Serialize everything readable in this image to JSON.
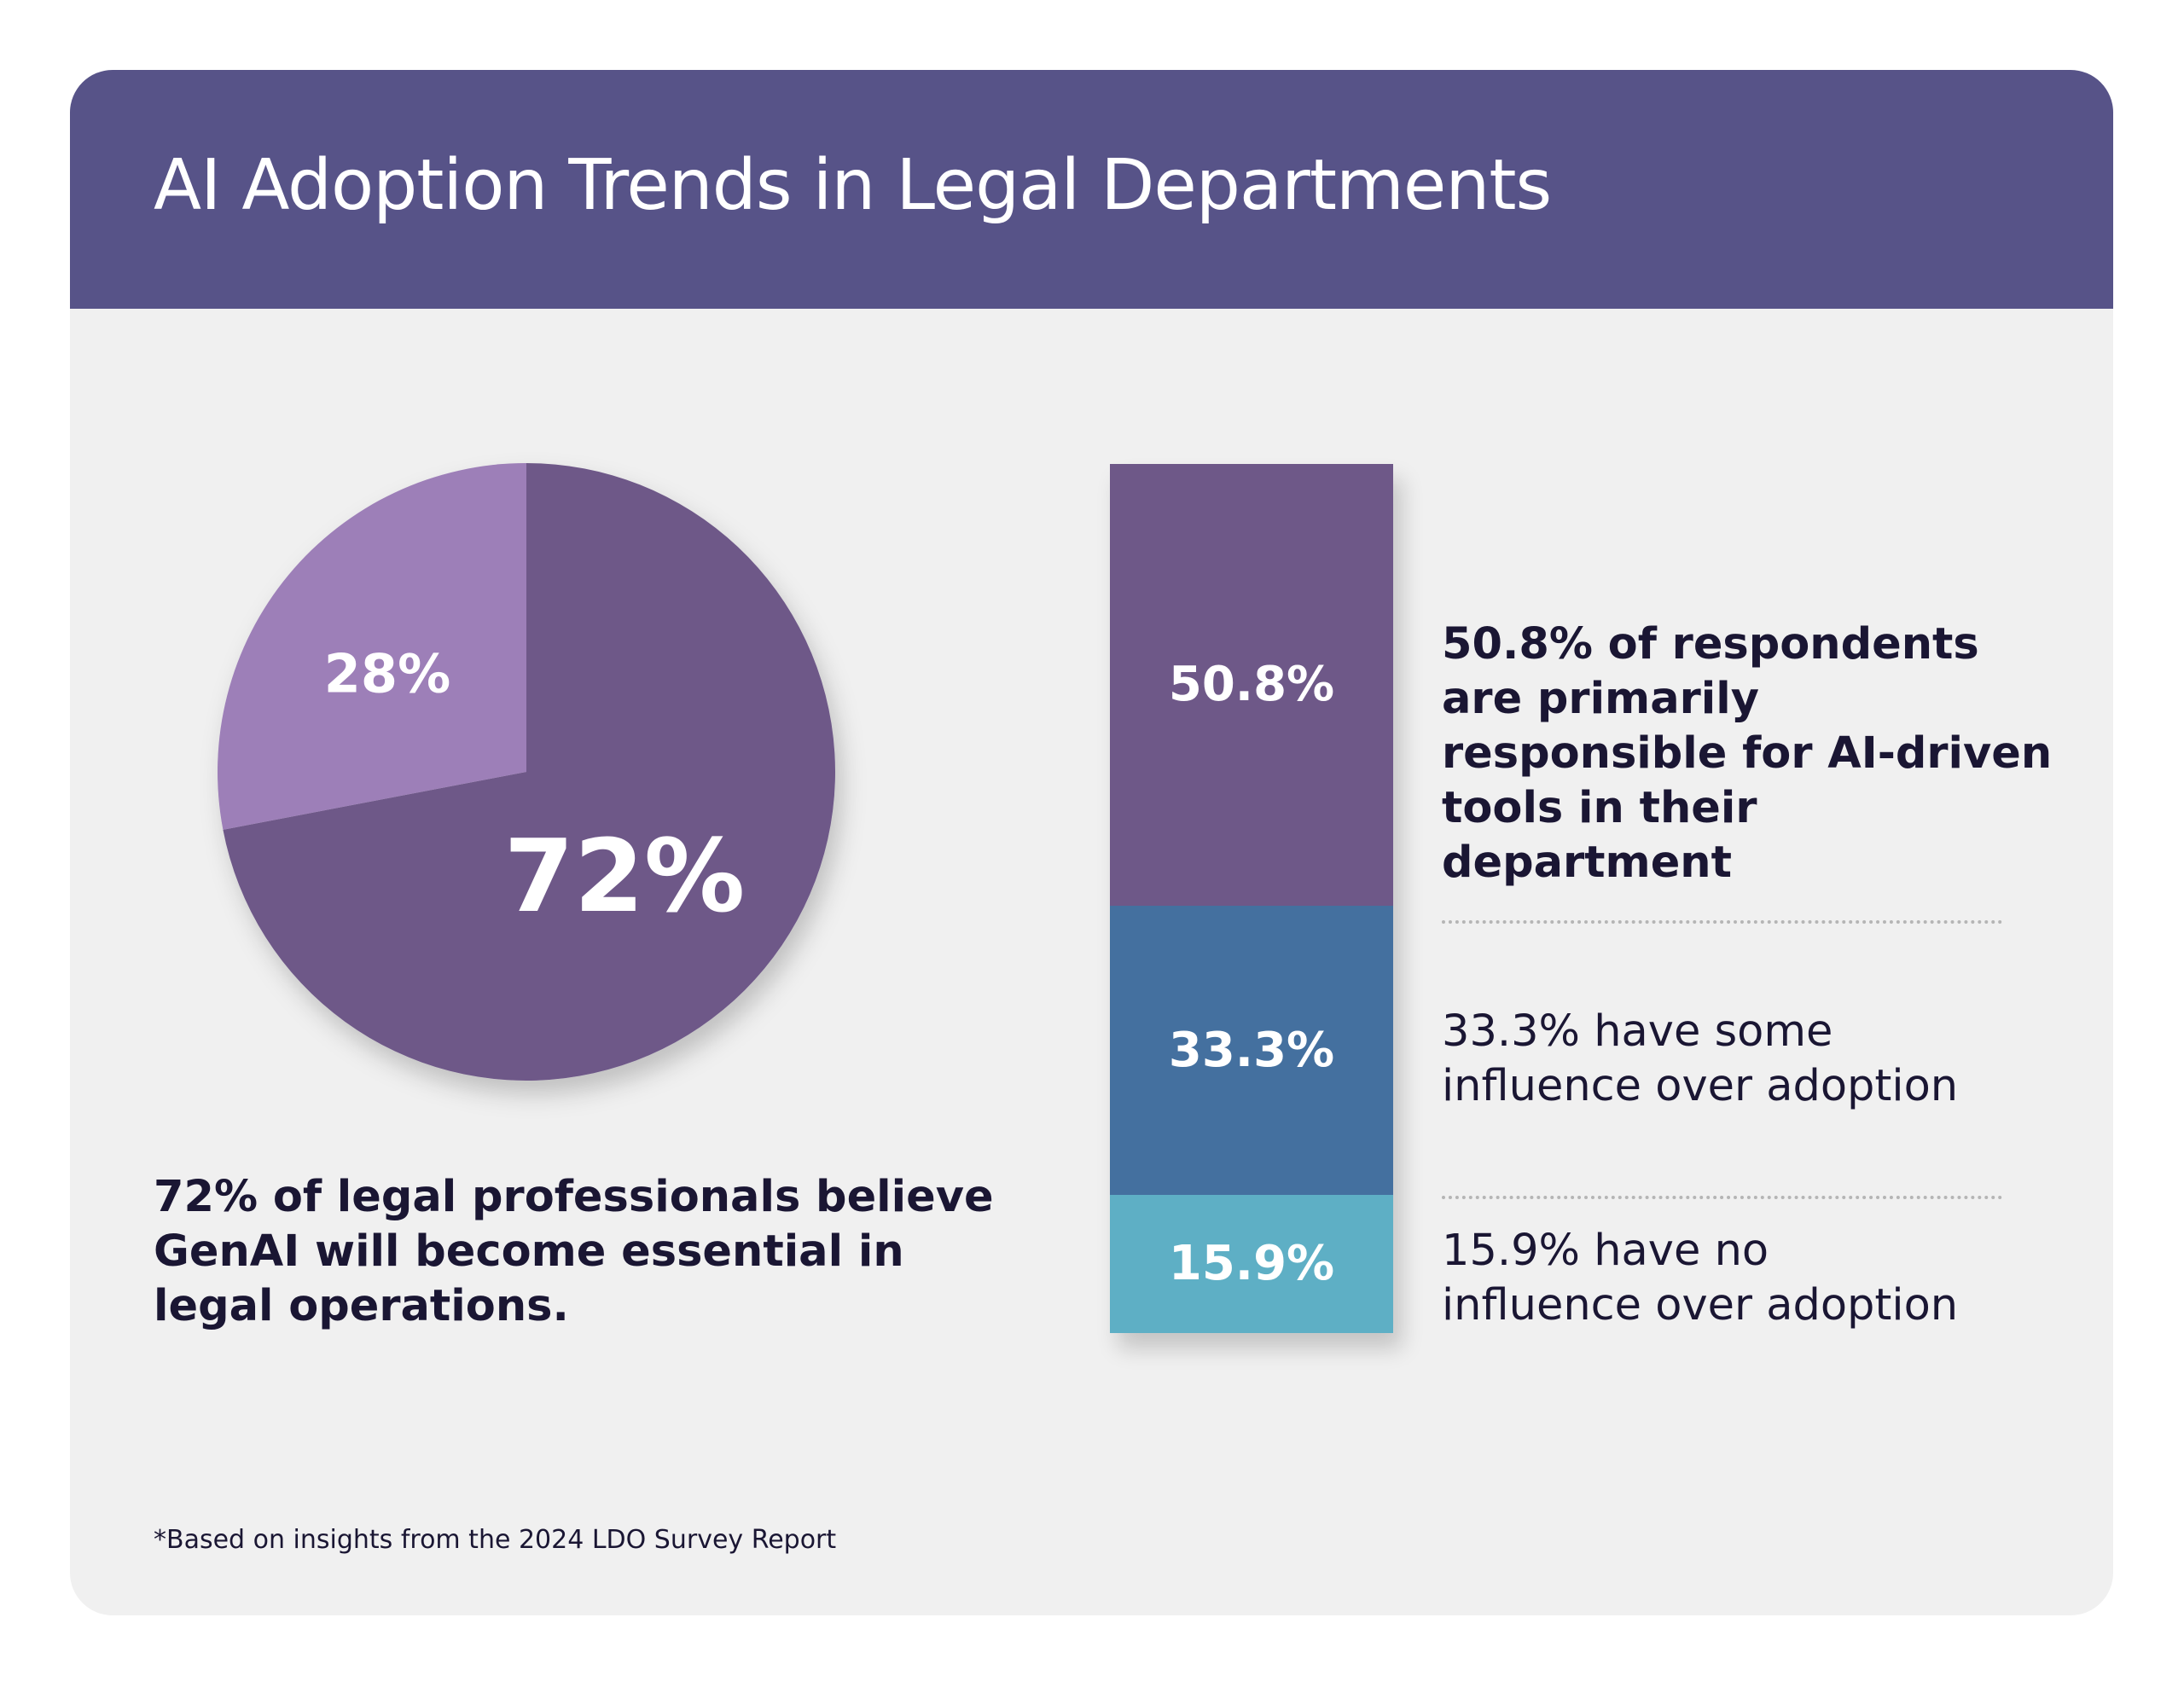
{
  "title": "AI Adoption Trends in Legal Departments",
  "colors": {
    "header": "#575388",
    "background": "#f0f0f0",
    "pie_major": "#6e5888",
    "pie_minor": "#9d7fb8",
    "bar_top": "#6e5888",
    "bar_mid": "#44709f",
    "bar_bottom": "#5eafc5",
    "text": "#1a1633"
  },
  "chart_data": [
    {
      "type": "pie",
      "slices": [
        {
          "label": "72%",
          "value": 72
        },
        {
          "label": "28%",
          "value": 28
        }
      ]
    },
    {
      "type": "bar",
      "stacked": true,
      "segments": [
        {
          "label": "50.8%",
          "value": 50.8
        },
        {
          "label": "33.3%",
          "value": 33.3
        },
        {
          "label": "15.9%",
          "value": 15.9
        }
      ]
    }
  ],
  "pie_caption": "72% of legal professionals believe GenAI will become essential in legal operations.",
  "bar_descriptions": [
    "50.8% of respondents are primarily responsible for AI-driven tools in their department",
    "33.3% have some influence over adoption",
    "15.9% have no influence over adoption"
  ],
  "footnote": "*Based on insights from the 2024 LDO Survey Report"
}
